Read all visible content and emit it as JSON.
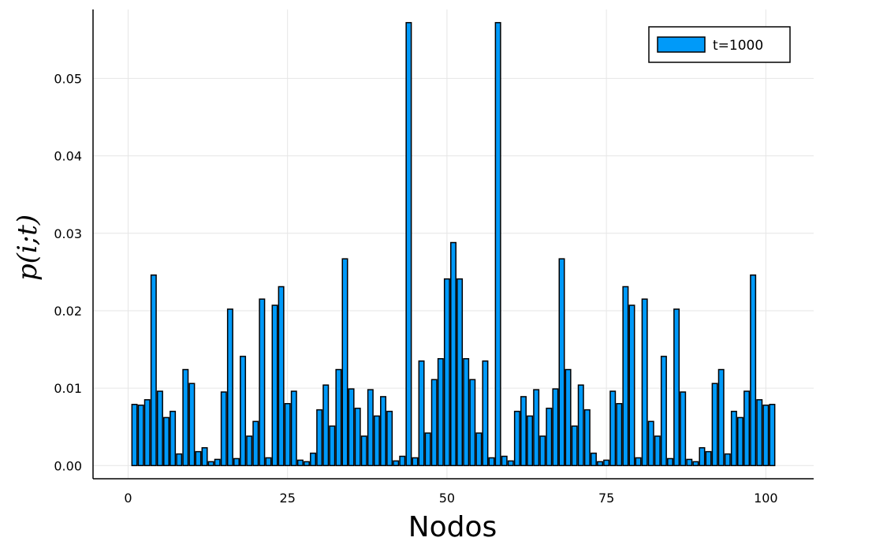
{
  "chart_data": {
    "type": "bar",
    "title": "",
    "xlabel": "Nodos",
    "ylabel": "p(i;t)",
    "series": [
      {
        "name": "t=1000",
        "color": "#009af9",
        "x": [
          1,
          2,
          3,
          4,
          5,
          6,
          7,
          8,
          9,
          10,
          11,
          12,
          13,
          14,
          15,
          16,
          17,
          18,
          19,
          20,
          21,
          22,
          23,
          24,
          25,
          26,
          27,
          28,
          29,
          30,
          31,
          32,
          33,
          34,
          35,
          36,
          37,
          38,
          39,
          40,
          41,
          42,
          43,
          44,
          45,
          46,
          47,
          48,
          49,
          50,
          51,
          52,
          53,
          54,
          55,
          56,
          57,
          58,
          59,
          60,
          61,
          62,
          63,
          64,
          65,
          66,
          67,
          68,
          69,
          70,
          71,
          72,
          73,
          74,
          75,
          76,
          77,
          78,
          79,
          80,
          81,
          82,
          83,
          84,
          85,
          86,
          87,
          88,
          89,
          90,
          91,
          92,
          93,
          94,
          95,
          96,
          97,
          98,
          99,
          100,
          101
        ],
        "values": [
          0.0079,
          0.0078,
          0.0085,
          0.0246,
          0.0096,
          0.0062,
          0.007,
          0.0015,
          0.0124,
          0.0106,
          0.0018,
          0.0023,
          0.0005,
          0.0008,
          0.0095,
          0.0202,
          0.0009,
          0.0141,
          0.0038,
          0.0057,
          0.0215,
          0.001,
          0.0207,
          0.0231,
          0.008,
          0.0096,
          0.0007,
          0.0005,
          0.0016,
          0.0072,
          0.0104,
          0.0051,
          0.0124,
          0.0267,
          0.0099,
          0.0074,
          0.0038,
          0.0098,
          0.0064,
          0.0089,
          0.007,
          0.0006,
          0.0012,
          0.0572,
          0.001,
          0.0135,
          0.0042,
          0.0111,
          0.0138,
          0.0241,
          0.0288,
          0.0241,
          0.0138,
          0.0111,
          0.0042,
          0.0135,
          0.001,
          0.0572,
          0.0012,
          0.0006,
          0.007,
          0.0089,
          0.0064,
          0.0098,
          0.0038,
          0.0074,
          0.0099,
          0.0267,
          0.0124,
          0.0051,
          0.0104,
          0.0072,
          0.0016,
          0.0005,
          0.0007,
          0.0096,
          0.008,
          0.0231,
          0.0207,
          0.001,
          0.0215,
          0.0057,
          0.0038,
          0.0141,
          0.0009,
          0.0202,
          0.0095,
          0.0008,
          0.0005,
          0.0023,
          0.0018,
          0.0106,
          0.0124,
          0.0015,
          0.007,
          0.0062,
          0.0096,
          0.0246,
          0.0085,
          0.0078,
          0.0079
        ]
      }
    ],
    "xlim": [
      -5.5,
      107.5
    ],
    "ylim": [
      -0.0017,
      0.0589
    ],
    "xticks": [
      0,
      25,
      50,
      75,
      100
    ],
    "xtick_labels": [
      "0",
      "25",
      "50",
      "75",
      "100"
    ],
    "yticks": [
      0.0,
      0.01,
      0.02,
      0.03,
      0.04,
      0.05
    ],
    "ytick_labels": [
      "0.00",
      "0.01",
      "0.02",
      "0.03",
      "0.04",
      "0.05"
    ],
    "grid": true,
    "legend_position": "top-right"
  }
}
